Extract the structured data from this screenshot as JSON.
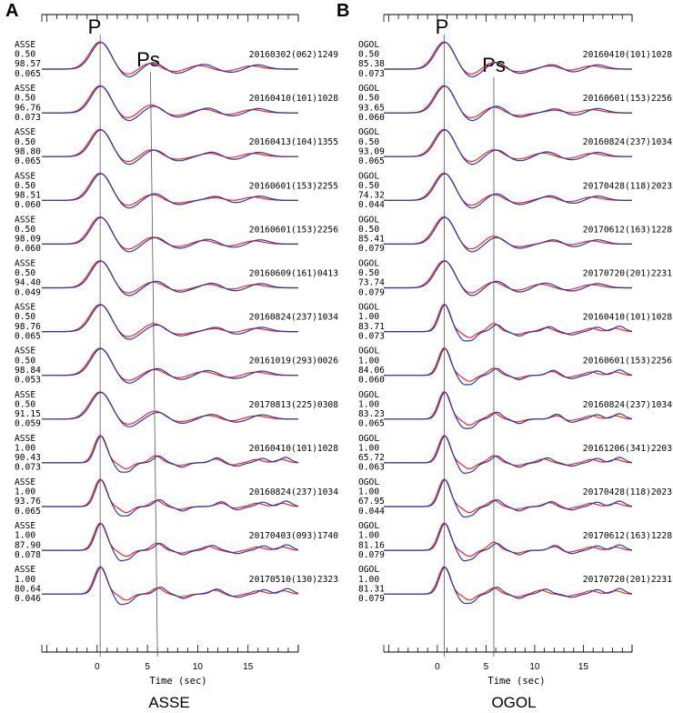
{
  "chart_data": [
    {
      "panel": "A",
      "station": "ASSE",
      "type": "line",
      "xlabel": "Time (sec)",
      "xlim": [
        -5.5,
        20
      ],
      "x_ticks": [
        0,
        5,
        10,
        15
      ],
      "phases": [
        {
          "name": "P",
          "t_start": 0.3,
          "t_end": 0.3
        },
        {
          "name": "Ps",
          "t_start": 5.3,
          "t_end": 6.0
        }
      ],
      "series_colors": {
        "observed": "#e8262b",
        "predicted": "#2b3aa0"
      },
      "traces": [
        {
          "name": "ASSE",
          "gauss": "0.50",
          "fit": "98.57",
          "rayp": "0.065",
          "event": "20160302(062)1249"
        },
        {
          "name": "ASSE",
          "gauss": "0.50",
          "fit": "96.76",
          "rayp": "0.073",
          "event": "20160410(101)1028"
        },
        {
          "name": "ASSE",
          "gauss": "0.50",
          "fit": "98.80",
          "rayp": "0.065",
          "event": "20160413(104)1355"
        },
        {
          "name": "ASSE",
          "gauss": "0.50",
          "fit": "98.51",
          "rayp": "0.060",
          "event": "20160601(153)2255"
        },
        {
          "name": "ASSE",
          "gauss": "0.50",
          "fit": "98.09",
          "rayp": "0.060",
          "event": "20160601(153)2256"
        },
        {
          "name": "ASSE",
          "gauss": "0.50",
          "fit": "94.40",
          "rayp": "0.049",
          "event": "20160609(161)0413"
        },
        {
          "name": "ASSE",
          "gauss": "0.50",
          "fit": "98.76",
          "rayp": "0.065",
          "event": "20160824(237)1034"
        },
        {
          "name": "ASSE",
          "gauss": "0.50",
          "fit": "98.84",
          "rayp": "0.053",
          "event": "20161019(293)0026"
        },
        {
          "name": "ASSE",
          "gauss": "0.50",
          "fit": "91.15",
          "rayp": "0.059",
          "event": "20170813(225)0308"
        },
        {
          "name": "ASSE",
          "gauss": "1.00",
          "fit": "90.43",
          "rayp": "0.073",
          "event": "20160410(101)1028"
        },
        {
          "name": "ASSE",
          "gauss": "1.00",
          "fit": "93.76",
          "rayp": "0.065",
          "event": "20160824(237)1034"
        },
        {
          "name": "ASSE",
          "gauss": "1.00",
          "fit": "87.90",
          "rayp": "0.078",
          "event": "20170403(093)1740"
        },
        {
          "name": "ASSE",
          "gauss": "1.00",
          "fit": "80.64",
          "rayp": "0.046",
          "event": "20170510(130)2323"
        }
      ]
    },
    {
      "panel": "B",
      "station": "OGOL",
      "type": "line",
      "xlabel": "Time (sec)",
      "xlim": [
        -5.5,
        20
      ],
      "x_ticks": [
        0,
        5,
        10,
        15
      ],
      "phases": [
        {
          "name": "P",
          "t_start": 0.7,
          "t_end": 0.7
        },
        {
          "name": "Ps",
          "t_start": 5.8,
          "t_end": 5.8
        }
      ],
      "series_colors": {
        "observed": "#e8262b",
        "predicted": "#2b3aa0"
      },
      "traces": [
        {
          "name": "OGOL",
          "gauss": "0.50",
          "fit": "85.38",
          "rayp": "0.073",
          "event": "20160410(101)1028"
        },
        {
          "name": "OGOL",
          "gauss": "0.50",
          "fit": "93.65",
          "rayp": "0.060",
          "event": "20160601(153)2256"
        },
        {
          "name": "OGOL",
          "gauss": "0.50",
          "fit": "93.09",
          "rayp": "0.065",
          "event": "20160824(237)1034"
        },
        {
          "name": "OGOL",
          "gauss": "0.50",
          "fit": "74.32",
          "rayp": "0.044",
          "event": "20170428(118)2023"
        },
        {
          "name": "OGOL",
          "gauss": "0.50",
          "fit": "85.41",
          "rayp": "0.079",
          "event": "20170612(163)1228"
        },
        {
          "name": "OGOL",
          "gauss": "0.50",
          "fit": "73.74",
          "rayp": "0.079",
          "event": "20170720(201)2231"
        },
        {
          "name": "OGOL",
          "gauss": "1.00",
          "fit": "83.71",
          "rayp": "0.073",
          "event": "20160410(101)1028"
        },
        {
          "name": "OGOL",
          "gauss": "1.00",
          "fit": "84.06",
          "rayp": "0.060",
          "event": "20160601(153)2256"
        },
        {
          "name": "OGOL",
          "gauss": "1.00",
          "fit": "83.23",
          "rayp": "0.065",
          "event": "20160824(237)1034"
        },
        {
          "name": "OGOL",
          "gauss": "1.00",
          "fit": "65.72",
          "rayp": "0.063",
          "event": "20161206(341)2203"
        },
        {
          "name": "OGOL",
          "gauss": "1.00",
          "fit": "67.95",
          "rayp": "0.044",
          "event": "20170428(118)2023"
        },
        {
          "name": "OGOL",
          "gauss": "1.00",
          "fit": "81.16",
          "rayp": "0.079",
          "event": "20170612(163)1228"
        },
        {
          "name": "OGOL",
          "gauss": "1.00",
          "fit": "81.31",
          "rayp": "0.079",
          "event": "20170720(201)2231"
        }
      ]
    }
  ]
}
